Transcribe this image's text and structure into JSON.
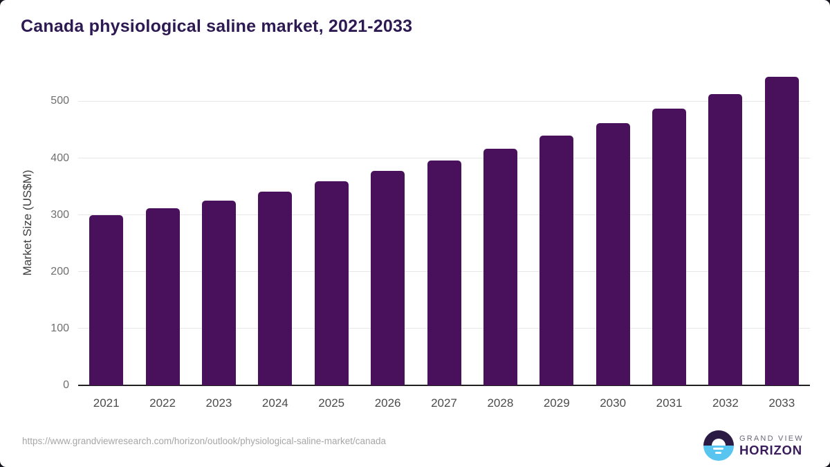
{
  "chart_data": {
    "type": "bar",
    "title": "Canada physiological saline market, 2021-2033",
    "xlabel": "",
    "ylabel": "Market Size (US$M)",
    "categories": [
      "2021",
      "2022",
      "2023",
      "2024",
      "2025",
      "2026",
      "2027",
      "2028",
      "2029",
      "2030",
      "2031",
      "2032",
      "2033"
    ],
    "values": [
      299,
      312,
      325,
      341,
      359,
      377,
      396,
      416,
      439,
      462,
      487,
      513,
      543
    ],
    "yticks": [
      0,
      100,
      200,
      300,
      400,
      500
    ],
    "ylim": [
      0,
      560
    ],
    "grid": true,
    "legend": false,
    "bar_color": "#49105c"
  },
  "colors": {
    "title": "#2e1a52",
    "bar": "#49105c",
    "gridline": "#e7e7e7",
    "axis_line": "#202020",
    "logo_dark": "#2a1a44",
    "logo_blue": "#58c4f0"
  },
  "footer": {
    "source_url": "https://www.grandviewresearch.com/horizon/outlook/physiological-saline-market/canada",
    "logo": {
      "top": "GRAND VIEW",
      "bottom": "HORIZON"
    }
  }
}
